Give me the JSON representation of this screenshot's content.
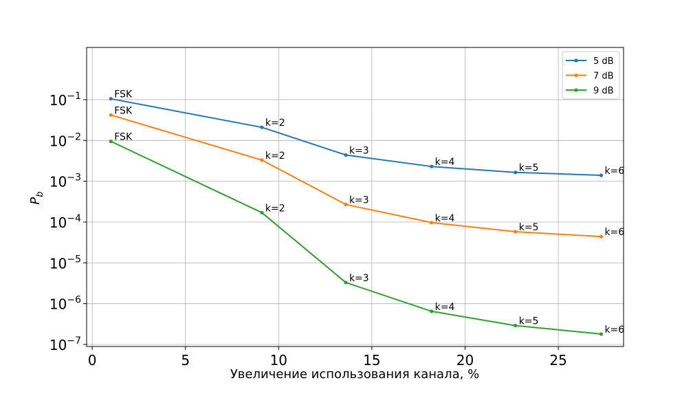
{
  "chart_data": {
    "type": "line",
    "title": "",
    "xlabel": "Увеличение использования канала, %",
    "ylabel": "P",
    "ylabel_sub": "b",
    "xlim": [
      -0.3,
      28.5
    ],
    "ylim_exponent": [
      -7.05,
      0.28
    ],
    "yscale": "log",
    "x_ticks": [
      0,
      5,
      10,
      15,
      20,
      25
    ],
    "y_ticks": [
      {
        "base": "10",
        "exp": "−1",
        "value": -1
      },
      {
        "base": "10",
        "exp": "−2",
        "value": -2
      },
      {
        "base": "10",
        "exp": "−3",
        "value": -3
      },
      {
        "base": "10",
        "exp": "−4",
        "value": -4
      },
      {
        "base": "10",
        "exp": "−5",
        "value": -5
      },
      {
        "base": "10",
        "exp": "−6",
        "value": -6
      },
      {
        "base": "10",
        "exp": "−7",
        "value": -7
      }
    ],
    "grid": true,
    "legend_position": "top-right",
    "x": [
      1.0,
      9.1,
      13.6,
      18.2,
      22.7,
      27.3
    ],
    "series": [
      {
        "name": "5 dB",
        "color": "#1f77b4",
        "values": [
          0.105,
          0.021,
          0.0044,
          0.0023,
          0.00165,
          0.0014
        ],
        "point_labels": [
          "FSK",
          "k=2",
          "k=3",
          "k=4",
          "k=5",
          "k=6"
        ]
      },
      {
        "name": "7 dB",
        "color": "#ff7f0e",
        "values": [
          0.042,
          0.0033,
          0.00027,
          9.7e-05,
          5.8e-05,
          4.4e-05
        ],
        "point_labels": [
          "FSK",
          "k=2",
          "k=3",
          "k=4",
          "k=5",
          "k=6"
        ]
      },
      {
        "name": "9 dB",
        "color": "#2ca02c",
        "values": [
          0.0095,
          0.00017,
          3.3e-06,
          6.5e-07,
          2.9e-07,
          1.8e-07
        ],
        "point_labels": [
          "FSK",
          "k=2",
          "k=3",
          "k=4",
          "k=5",
          "k=6"
        ]
      }
    ]
  }
}
